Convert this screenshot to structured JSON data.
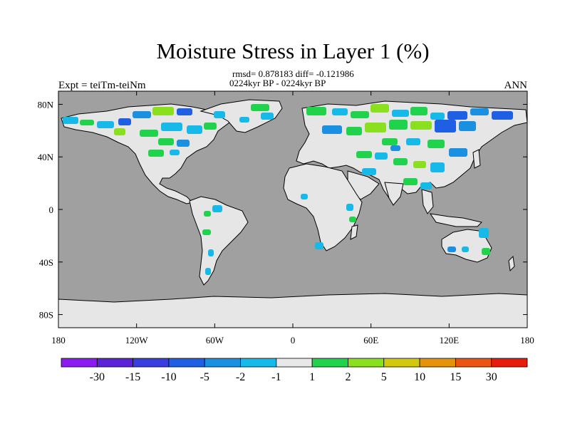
{
  "figure": {
    "title": "Moisture Stress in Layer 1 (%)",
    "stats_line": "rmsd= 0.878183 diff= -0.121986",
    "period_line": "0224kyr BP - 0224kyr BP",
    "left_label": "Expt = teiTm-teiNm",
    "right_label": "ANN"
  },
  "axes": {
    "x_ticks": [
      "180",
      "120W",
      "60W",
      "0",
      "60E",
      "120E",
      "180"
    ],
    "x_tick_values": [
      -180,
      -120,
      -60,
      0,
      60,
      120,
      180
    ],
    "y_ticks": [
      "80N",
      "40N",
      "0",
      "40S",
      "80S"
    ],
    "y_tick_values": [
      80,
      40,
      0,
      -40,
      -80
    ],
    "lon_range": [
      -180,
      180
    ],
    "lat_range": [
      -90,
      90
    ]
  },
  "colorbar": {
    "labels": [
      "-30",
      "-15",
      "-10",
      "-5",
      "-2",
      "-1",
      "1",
      "2",
      "5",
      "10",
      "15",
      "30"
    ],
    "colors": [
      "#8c1bef",
      "#5a23d8",
      "#3a3ee0",
      "#1f5fe4",
      "#1b8fe0",
      "#17b9e8",
      "#e8e8e8",
      "#21d24c",
      "#8adf1e",
      "#d2c80e",
      "#e6920b",
      "#ea5512",
      "#e81b0f"
    ]
  },
  "colors": {
    "ocean": "#a0a0a0",
    "land": "#e6e6e6",
    "neg_small": "#17b9e8",
    "neg_mid": "#1b8fe0",
    "neg_large": "#1f5fe4",
    "pos_small": "#21d24c",
    "pos_mid": "#8adf1e",
    "pos_large": "#d2c80e"
  }
}
